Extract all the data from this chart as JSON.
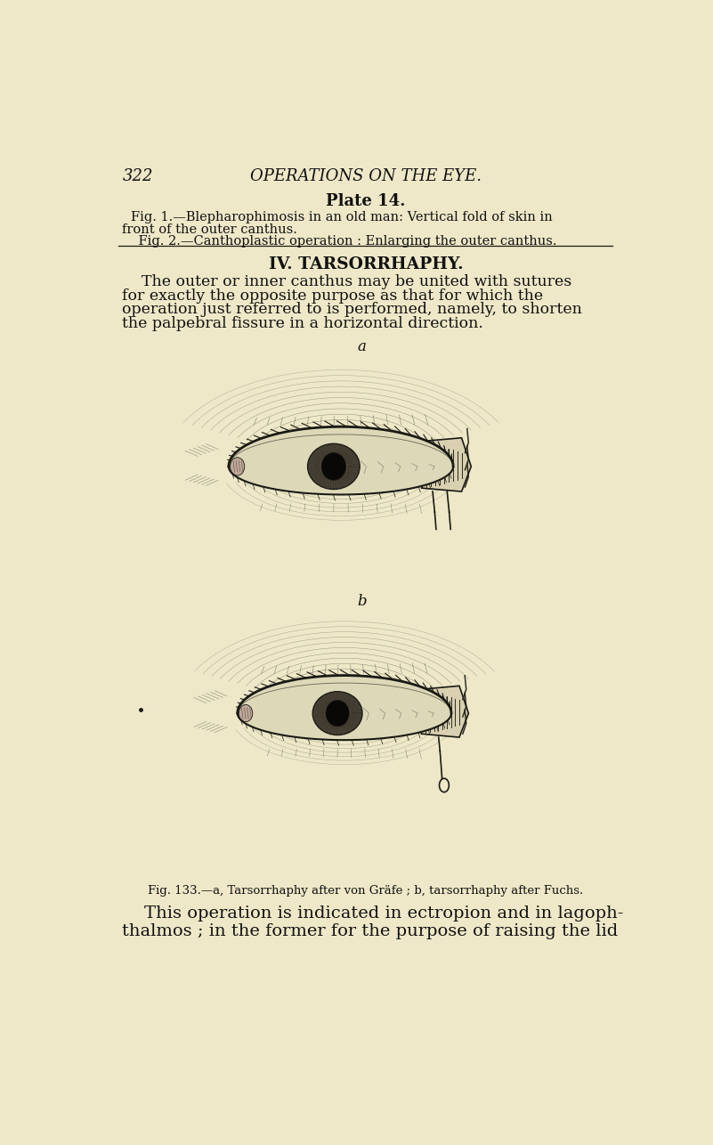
{
  "bg_color": "#eee8c8",
  "page_number": "322",
  "header_title": "OPERATIONS ON THE EYE.",
  "plate_title": "Plate 14.",
  "fig1_caption_line1": "Fig. 1.—Blepharophimosis in an old man: Vertical fold of skin in",
  "fig1_caption_line2": "front of the outer canthus.",
  "fig2_caption": "    Fig. 2.—Canthoplastic operation : Enlarging the outer canthus.",
  "section_title": "IV. TARSORRHAPHY.",
  "para1_lines": [
    "    The outer or inner canthus may be united with sutures",
    "for exactly the opposite purpose as that for which the",
    "operation just referred to is performed, namely, to shorten",
    "the palpebral fissure in a horizontal direction."
  ],
  "label_a": "a",
  "label_b": "b",
  "fig133_caption": "Fig. 133.—a, Tarsorrhaphy after von Gräfe ; b, tarsorrhaphy after Fuchs.",
  "para2_lines": [
    "    This operation is indicated in ectropion and in lagoph-",
    "thalmos ; in the former for the purpose of raising the lid"
  ],
  "text_color": "#111111",
  "ink_color": "#1a1a14"
}
